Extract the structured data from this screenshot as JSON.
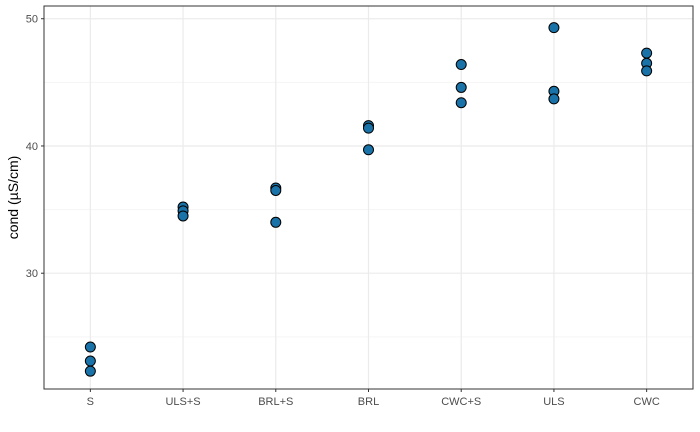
{
  "chart_data": {
    "type": "scatter",
    "title": "",
    "xlabel": "",
    "ylabel": "cond (µS/cm)",
    "categories": [
      "S",
      "ULS+S",
      "BRL+S",
      "BRL",
      "CWC+S",
      "ULS",
      "CWC"
    ],
    "ylim": [
      20.9,
      51.0
    ],
    "y_ticks": [
      30,
      40,
      50
    ],
    "grid": true,
    "legend": "none",
    "series": [
      {
        "points": [
          {
            "x": "S",
            "y": 24.2
          },
          {
            "x": "S",
            "y": 23.1
          },
          {
            "x": "S",
            "y": 22.3
          },
          {
            "x": "ULS+S",
            "y": 35.2
          },
          {
            "x": "ULS+S",
            "y": 34.9
          },
          {
            "x": "ULS+S",
            "y": 34.5
          },
          {
            "x": "BRL+S",
            "y": 36.7
          },
          {
            "x": "BRL+S",
            "y": 36.5
          },
          {
            "x": "BRL+S",
            "y": 34.0
          },
          {
            "x": "BRL",
            "y": 41.6
          },
          {
            "x": "BRL",
            "y": 41.4
          },
          {
            "x": "BRL",
            "y": 39.7
          },
          {
            "x": "CWC+S",
            "y": 46.4
          },
          {
            "x": "CWC+S",
            "y": 44.6
          },
          {
            "x": "CWC+S",
            "y": 43.4
          },
          {
            "x": "ULS",
            "y": 49.3
          },
          {
            "x": "ULS",
            "y": 44.3
          },
          {
            "x": "ULS",
            "y": 43.7
          },
          {
            "x": "CWC",
            "y": 47.3
          },
          {
            "x": "CWC",
            "y": 46.5
          },
          {
            "x": "CWC",
            "y": 45.9
          }
        ]
      }
    ]
  },
  "colors": {
    "point_fill": "#1a73a8",
    "point_stroke": "#000000",
    "grid_major": "#ebebeb",
    "grid_minor": "#f5f5f5",
    "panel_border": "#333333"
  }
}
